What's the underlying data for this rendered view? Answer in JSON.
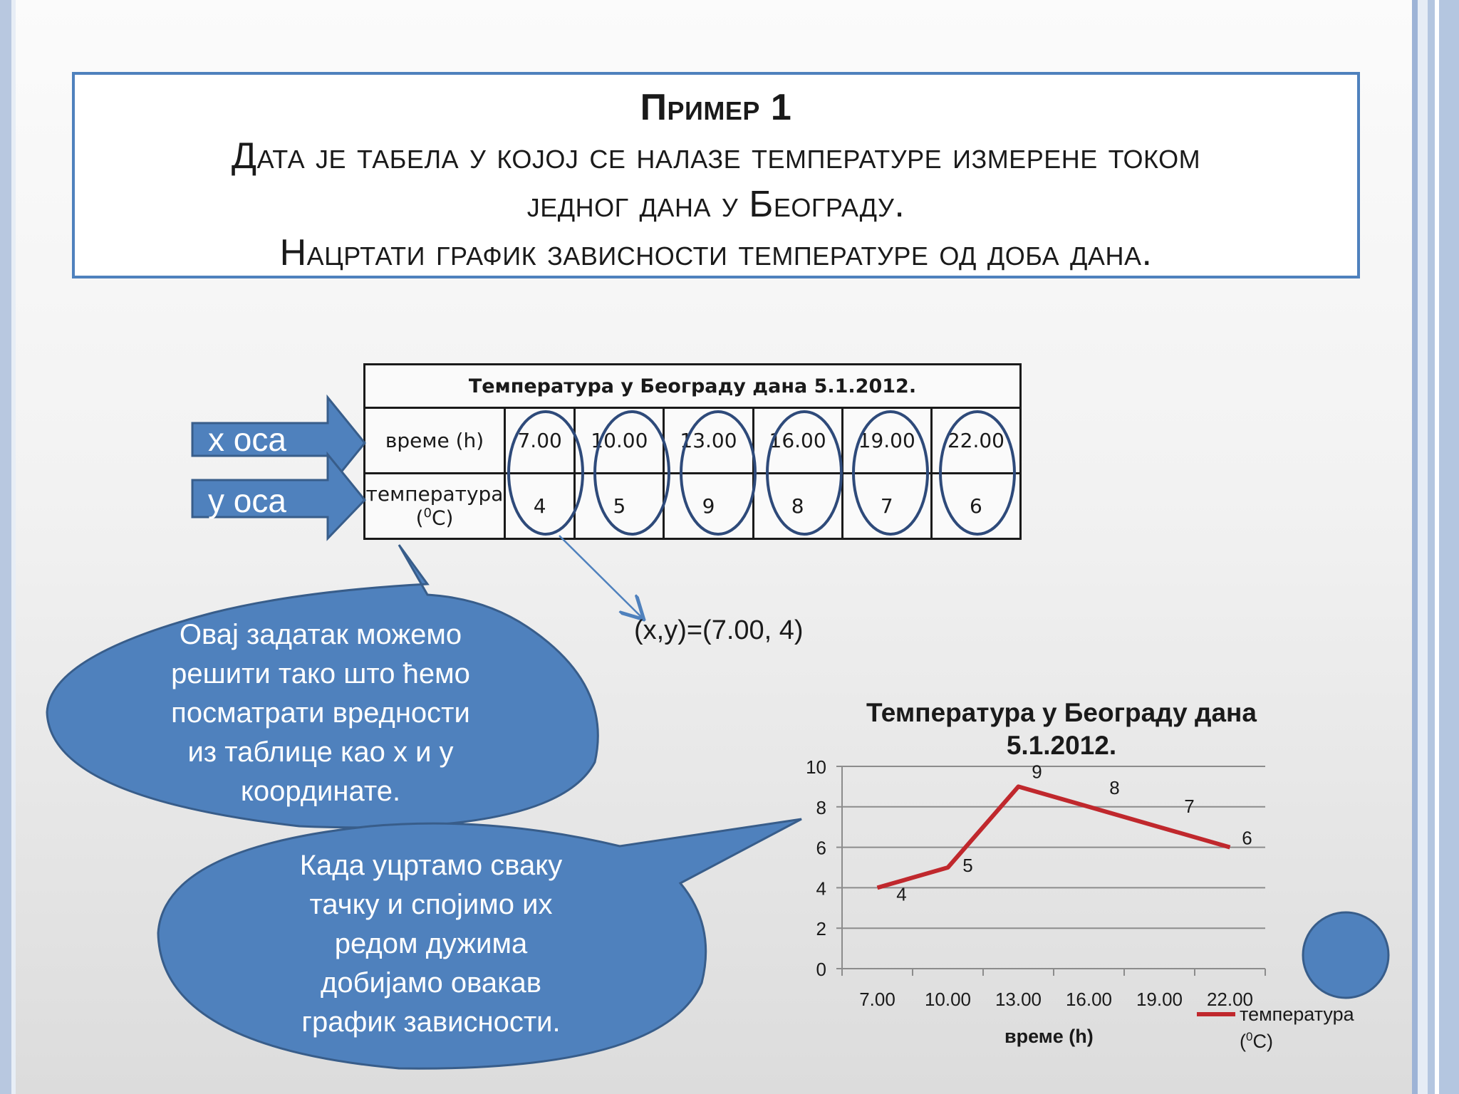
{
  "slide": {
    "title": "Пример 1",
    "line1": "Дата је табела у којој се налазе температуре измерене током",
    "line2": "једног дана у Београду.",
    "line3": "Нацртати график зависности температуре од доба дана."
  },
  "table": {
    "caption": "Температура у Београду дана 5.1.2012.",
    "row1_label": "време (h)",
    "row2_label_line1": "температура",
    "row2_label_line2_pre": "(",
    "row2_label_sup": "0",
    "row2_label_line2_post": "C)",
    "times": [
      "7.00",
      "10.00",
      "13.00",
      "16.00",
      "19.00",
      "22.00"
    ],
    "temps": [
      "4",
      "5",
      "9",
      "8",
      "7",
      "6"
    ]
  },
  "arrows": {
    "x_label": "x оса",
    "y_label": "y оса"
  },
  "coord_note": "(x,y)=(7.00, 4)",
  "bubble1": {
    "lines": [
      "Овај задатак можемо",
      "решити тако што ћемо",
      "посматрати вредности",
      "из таблице као x и y",
      "координате."
    ]
  },
  "bubble2": {
    "lines": [
      "Када уцртамо сваку",
      "тачку и спојимо их",
      "редом дужима",
      "добијамо овакав",
      "график зависности."
    ]
  },
  "colors": {
    "accent": "#4f81bd",
    "series": "#c0282d"
  },
  "chart_data": {
    "type": "line",
    "title_line1": "Температура у Београду дана",
    "title_line2": "5.1.2012.",
    "xlabel": "време (h)",
    "ylabel": "",
    "categories": [
      "7.00",
      "10.00",
      "13.00",
      "16.00",
      "19.00",
      "22.00"
    ],
    "series": [
      {
        "name_pre": "температура",
        "name_sub_pre": "(",
        "name_sup": "0",
        "name_sub_post": "C)",
        "values": [
          4,
          5,
          9,
          8,
          7,
          6
        ]
      }
    ],
    "ylim": [
      0,
      10
    ],
    "yticks": [
      0,
      2,
      4,
      6,
      8,
      10
    ],
    "grid": true,
    "legend": "right"
  }
}
